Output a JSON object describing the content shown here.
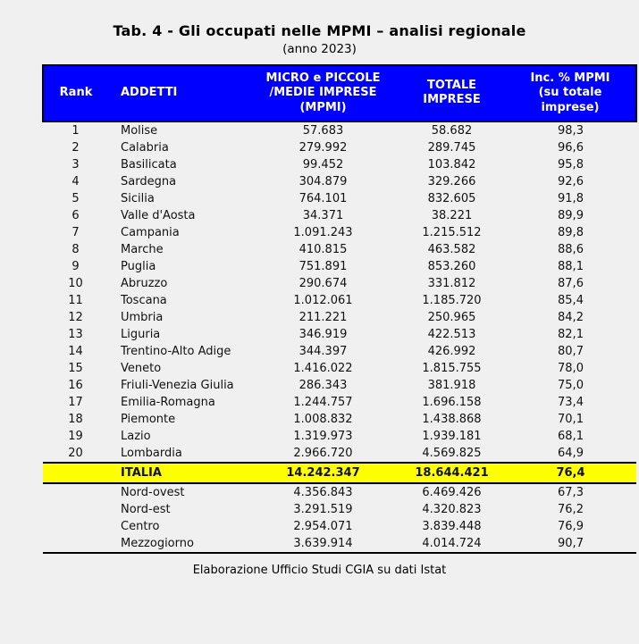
{
  "colors": {
    "page_bg": "#f0f0f0",
    "header_bg": "#0000ff",
    "header_text": "#ffffff",
    "highlight_bg": "#ffff00",
    "border": "#000000",
    "text": "#111111"
  },
  "chart_data": {
    "type": "table",
    "title": "Tab. 4 - Gli occupati nelle MPMI – analisi regionale",
    "subtitle": "(anno 2023)",
    "source": "Elaborazione Ufficio Studi CGIA su dati Istat",
    "columns": [
      "Rank",
      "ADDETTI",
      "MICRO e PICCOLE\n/MEDIE IMPRESE\n(MPMI)",
      "TOTALE\nIMPRESE",
      "Inc. % MPMI\n(su totale\nimprese)"
    ],
    "rows": [
      {
        "rank": "1",
        "name": "Molise",
        "mpmi": "57.683",
        "totale": "58.682",
        "inc": "98,3"
      },
      {
        "rank": "2",
        "name": "Calabria",
        "mpmi": "279.992",
        "totale": "289.745",
        "inc": "96,6"
      },
      {
        "rank": "3",
        "name": "Basilicata",
        "mpmi": "99.452",
        "totale": "103.842",
        "inc": "95,8"
      },
      {
        "rank": "4",
        "name": "Sardegna",
        "mpmi": "304.879",
        "totale": "329.266",
        "inc": "92,6"
      },
      {
        "rank": "5",
        "name": "Sicilia",
        "mpmi": "764.101",
        "totale": "832.605",
        "inc": "91,8"
      },
      {
        "rank": "6",
        "name": "Valle d'Aosta",
        "mpmi": "34.371",
        "totale": "38.221",
        "inc": "89,9"
      },
      {
        "rank": "7",
        "name": "Campania",
        "mpmi": "1.091.243",
        "totale": "1.215.512",
        "inc": "89,8"
      },
      {
        "rank": "8",
        "name": "Marche",
        "mpmi": "410.815",
        "totale": "463.582",
        "inc": "88,6"
      },
      {
        "rank": "9",
        "name": "Puglia",
        "mpmi": "751.891",
        "totale": "853.260",
        "inc": "88,1"
      },
      {
        "rank": "10",
        "name": "Abruzzo",
        "mpmi": "290.674",
        "totale": "331.812",
        "inc": "87,6"
      },
      {
        "rank": "11",
        "name": "Toscana",
        "mpmi": "1.012.061",
        "totale": "1.185.720",
        "inc": "85,4"
      },
      {
        "rank": "12",
        "name": "Umbria",
        "mpmi": "211.221",
        "totale": "250.965",
        "inc": "84,2"
      },
      {
        "rank": "13",
        "name": "Liguria",
        "mpmi": "346.919",
        "totale": "422.513",
        "inc": "82,1"
      },
      {
        "rank": "14",
        "name": "Trentino-Alto Adige",
        "mpmi": "344.397",
        "totale": "426.992",
        "inc": "80,7"
      },
      {
        "rank": "15",
        "name": "Veneto",
        "mpmi": "1.416.022",
        "totale": "1.815.755",
        "inc": "78,0"
      },
      {
        "rank": "16",
        "name": "Friuli-Venezia Giulia",
        "mpmi": "286.343",
        "totale": "381.918",
        "inc": "75,0"
      },
      {
        "rank": "17",
        "name": "Emilia-Romagna",
        "mpmi": "1.244.757",
        "totale": "1.696.158",
        "inc": "73,4"
      },
      {
        "rank": "18",
        "name": "Piemonte",
        "mpmi": "1.008.832",
        "totale": "1.438.868",
        "inc": "70,1"
      },
      {
        "rank": "19",
        "name": "Lazio",
        "mpmi": "1.319.973",
        "totale": "1.939.181",
        "inc": "68,1"
      },
      {
        "rank": "20",
        "name": "Lombardia",
        "mpmi": "2.966.720",
        "totale": "4.569.825",
        "inc": "64,9"
      }
    ],
    "total_row": {
      "rank": "",
      "name": "ITALIA",
      "mpmi": "14.242.347",
      "totale": "18.644.421",
      "inc": "76,4"
    },
    "area_rows": [
      {
        "rank": "",
        "name": "Nord-ovest",
        "mpmi": "4.356.843",
        "totale": "6.469.426",
        "inc": "67,3"
      },
      {
        "rank": "",
        "name": "Nord-est",
        "mpmi": "3.291.519",
        "totale": "4.320.823",
        "inc": "76,2"
      },
      {
        "rank": "",
        "name": "Centro",
        "mpmi": "2.954.071",
        "totale": "3.839.448",
        "inc": "76,9"
      },
      {
        "rank": "",
        "name": "Mezzogiorno",
        "mpmi": "3.639.914",
        "totale": "4.014.724",
        "inc": "90,7"
      }
    ]
  }
}
